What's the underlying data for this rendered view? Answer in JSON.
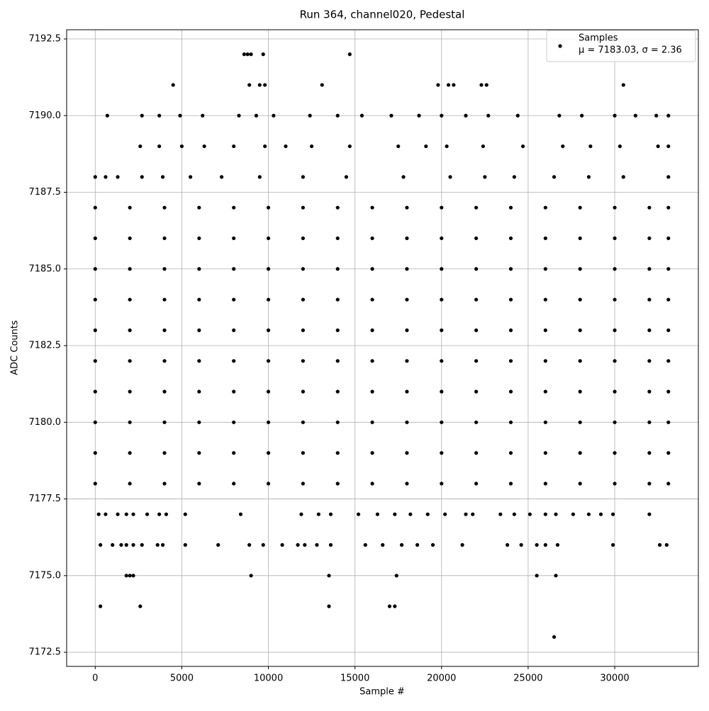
{
  "chart_data": {
    "type": "scatter",
    "title": "Run 364, channel020, Pedestal",
    "x_label": "Sample #",
    "y_label": "ADC Counts",
    "series": [
      {
        "name": "Samples",
        "color": "#000000",
        "x": [
          0,
          2000,
          4000,
          6000,
          8000,
          10000,
          12000,
          14000,
          16000,
          18000,
          20000,
          22000,
          24000,
          26000,
          28000,
          30000,
          32000,
          33100,
          0,
          2000,
          4000,
          6000,
          8000,
          10000,
          12000,
          14000,
          16000,
          18000,
          20000,
          22000,
          24000,
          26000,
          28000,
          30000,
          32000,
          33100,
          0,
          2000,
          4000,
          6000,
          8000,
          10000,
          12000,
          14000,
          16000,
          18000,
          20000,
          22000,
          24000,
          26000,
          28000,
          30000,
          32000,
          33100,
          0,
          2000,
          4000,
          6000,
          8000,
          10000,
          12000,
          14000,
          16000,
          18000,
          20000,
          22000,
          24000,
          26000,
          28000,
          30000,
          32000,
          33100,
          0,
          2000,
          4000,
          6000,
          8000,
          10000,
          12000,
          14000,
          16000,
          18000,
          20000,
          22000,
          24000,
          26000,
          28000,
          30000,
          32000,
          33100,
          0,
          2000,
          4000,
          6000,
          8000,
          10000,
          12000,
          14000,
          16000,
          18000,
          20000,
          22000,
          24000,
          26000,
          28000,
          30000,
          32000,
          33100,
          0,
          2000,
          4000,
          6000,
          8000,
          10000,
          12000,
          14000,
          16000,
          18000,
          20000,
          22000,
          24000,
          26000,
          28000,
          30000,
          32000,
          33100,
          0,
          2000,
          4000,
          6000,
          8000,
          10000,
          12000,
          14000,
          16000,
          18000,
          20000,
          22000,
          24000,
          26000,
          28000,
          30000,
          32000,
          33100,
          0,
          2000,
          4000,
          6000,
          8000,
          10000,
          12000,
          14000,
          16000,
          18000,
          20000,
          22000,
          24000,
          26000,
          28000,
          30000,
          32000,
          33100,
          0,
          2000,
          4000,
          6000,
          8000,
          10000,
          12000,
          14000,
          16000,
          18000,
          20000,
          22000,
          24000,
          26000,
          28000,
          30000,
          32000,
          33100,
          0,
          600,
          1300,
          2700,
          3900,
          5500,
          7300,
          9500,
          12000,
          14500,
          17800,
          20500,
          22500,
          24200,
          26500,
          28500,
          30500,
          33100,
          2600,
          3700,
          5000,
          6300,
          8000,
          9800,
          11000,
          12500,
          14700,
          17500,
          19100,
          20300,
          22400,
          24700,
          27000,
          28600,
          30300,
          32500,
          33100,
          700,
          2700,
          3700,
          4900,
          6200,
          8300,
          9300,
          10300,
          12400,
          14000,
          15400,
          17100,
          18700,
          20000,
          21400,
          22700,
          24400,
          26800,
          28100,
          30000,
          31200,
          32400,
          33100,
          4500,
          8900,
          9500,
          9800,
          13100,
          19800,
          20400,
          20700,
          22300,
          22600,
          30500,
          8600,
          8800,
          9000,
          9700,
          14700,
          200,
          600,
          1300,
          1800,
          2200,
          3000,
          3700,
          4100,
          5200,
          8400,
          11900,
          12900,
          13600,
          15200,
          16300,
          17300,
          18200,
          19200,
          20200,
          21400,
          21800,
          23400,
          24200,
          25100,
          26000,
          26600,
          27600,
          28500,
          29200,
          29900,
          32000,
          300,
          1000,
          1500,
          1800,
          2200,
          2700,
          3600,
          3900,
          5200,
          7100,
          8900,
          9700,
          10800,
          11700,
          12100,
          12800,
          13600,
          15600,
          16600,
          17700,
          18600,
          19500,
          21200,
          23800,
          24600,
          25500,
          26000,
          26700,
          29900,
          32600,
          33000,
          1800,
          2000,
          2200,
          9000,
          13500,
          17400,
          25500,
          26600,
          300,
          2600,
          13500,
          17000,
          17300,
          26500
        ],
        "values": [
          7178,
          7178,
          7178,
          7178,
          7178,
          7178,
          7178,
          7178,
          7178,
          7178,
          7178,
          7178,
          7178,
          7178,
          7178,
          7178,
          7178,
          7178,
          7179,
          7179,
          7179,
          7179,
          7179,
          7179,
          7179,
          7179,
          7179,
          7179,
          7179,
          7179,
          7179,
          7179,
          7179,
          7179,
          7179,
          7179,
          7180,
          7180,
          7180,
          7180,
          7180,
          7180,
          7180,
          7180,
          7180,
          7180,
          7180,
          7180,
          7180,
          7180,
          7180,
          7180,
          7180,
          7180,
          7181,
          7181,
          7181,
          7181,
          7181,
          7181,
          7181,
          7181,
          7181,
          7181,
          7181,
          7181,
          7181,
          7181,
          7181,
          7181,
          7181,
          7181,
          7182,
          7182,
          7182,
          7182,
          7182,
          7182,
          7182,
          7182,
          7182,
          7182,
          7182,
          7182,
          7182,
          7182,
          7182,
          7182,
          7182,
          7182,
          7183,
          7183,
          7183,
          7183,
          7183,
          7183,
          7183,
          7183,
          7183,
          7183,
          7183,
          7183,
          7183,
          7183,
          7183,
          7183,
          7183,
          7183,
          7184,
          7184,
          7184,
          7184,
          7184,
          7184,
          7184,
          7184,
          7184,
          7184,
          7184,
          7184,
          7184,
          7184,
          7184,
          7184,
          7184,
          7184,
          7185,
          7185,
          7185,
          7185,
          7185,
          7185,
          7185,
          7185,
          7185,
          7185,
          7185,
          7185,
          7185,
          7185,
          7185,
          7185,
          7185,
          7185,
          7186,
          7186,
          7186,
          7186,
          7186,
          7186,
          7186,
          7186,
          7186,
          7186,
          7186,
          7186,
          7186,
          7186,
          7186,
          7186,
          7186,
          7186,
          7187,
          7187,
          7187,
          7187,
          7187,
          7187,
          7187,
          7187,
          7187,
          7187,
          7187,
          7187,
          7187,
          7187,
          7187,
          7187,
          7187,
          7187,
          7188,
          7188,
          7188,
          7188,
          7188,
          7188,
          7188,
          7188,
          7188,
          7188,
          7188,
          7188,
          7188,
          7188,
          7188,
          7188,
          7188,
          7188,
          7189,
          7189,
          7189,
          7189,
          7189,
          7189,
          7189,
          7189,
          7189,
          7189,
          7189,
          7189,
          7189,
          7189,
          7189,
          7189,
          7189,
          7189,
          7189,
          7190,
          7190,
          7190,
          7190,
          7190,
          7190,
          7190,
          7190,
          7190,
          7190,
          7190,
          7190,
          7190,
          7190,
          7190,
          7190,
          7190,
          7190,
          7190,
          7190,
          7190,
          7190,
          7190,
          7191,
          7191,
          7191,
          7191,
          7191,
          7191,
          7191,
          7191,
          7191,
          7191,
          7191,
          7192,
          7192,
          7192,
          7192,
          7192,
          7177,
          7177,
          7177,
          7177,
          7177,
          7177,
          7177,
          7177,
          7177,
          7177,
          7177,
          7177,
          7177,
          7177,
          7177,
          7177,
          7177,
          7177,
          7177,
          7177,
          7177,
          7177,
          7177,
          7177,
          7177,
          7177,
          7177,
          7177,
          7177,
          7177,
          7177,
          7176,
          7176,
          7176,
          7176,
          7176,
          7176,
          7176,
          7176,
          7176,
          7176,
          7176,
          7176,
          7176,
          7176,
          7176,
          7176,
          7176,
          7176,
          7176,
          7176,
          7176,
          7176,
          7176,
          7176,
          7176,
          7176,
          7176,
          7176,
          7176,
          7176,
          7176,
          7175,
          7175,
          7175,
          7175,
          7175,
          7175,
          7175,
          7175,
          7174,
          7174,
          7174,
          7174,
          7174,
          7173
        ]
      }
    ],
    "legend_note": "μ = 7183.03, σ = 2.36",
    "xlim": [
      -1650,
      34830
    ],
    "xticks": [
      0,
      5000,
      10000,
      15000,
      20000,
      25000,
      30000
    ],
    "ylim": [
      7172.04,
      7192.8
    ],
    "yticks": [
      7172.5,
      {
        "value": 7175,
        "label": "7175.0"
      },
      7177.5,
      {
        "value": 7180,
        "label": "7180.0"
      },
      7182.5,
      {
        "value": 7185,
        "label": "7185.0"
      },
      7187.5,
      {
        "value": 7190,
        "label": "7190.0"
      },
      7192.5
    ],
    "grid": true,
    "legend": "upper right"
  }
}
